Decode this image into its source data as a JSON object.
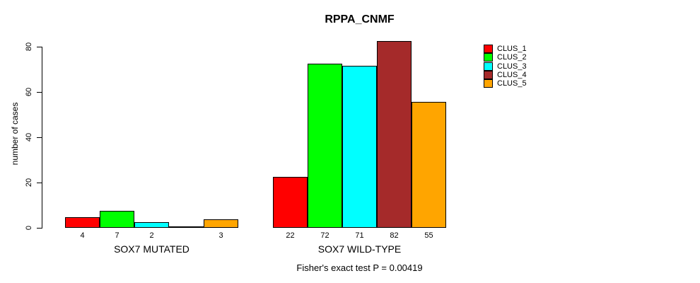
{
  "chart_data": {
    "type": "bar",
    "title": "RPPA_CNMF",
    "ylabel": "number of cases",
    "xlabel": "",
    "ylim": [
      0,
      80
    ],
    "yticks": [
      0,
      20,
      40,
      60,
      80
    ],
    "grid": false,
    "legend_position": "right-outside",
    "annotation": "Fisher's exact test P = 0.00419",
    "categories": [
      "SOX7 MUTATED",
      "SOX7 WILD-TYPE"
    ],
    "series": [
      {
        "name": "CLUS_1",
        "color": "#ff0000",
        "values": [
          4,
          22
        ]
      },
      {
        "name": "CLUS_2",
        "color": "#00ff00",
        "values": [
          7,
          72
        ]
      },
      {
        "name": "CLUS_3",
        "color": "#00ffff",
        "values": [
          2,
          71
        ]
      },
      {
        "name": "CLUS_4",
        "color": "#a52a2a",
        "values": [
          0,
          82
        ]
      },
      {
        "name": "CLUS_5",
        "color": "#ffa500",
        "values": [
          3,
          55
        ]
      }
    ],
    "groups": [
      {
        "label": "SOX7 MUTATED",
        "values": [
          4,
          7,
          2,
          0,
          3
        ],
        "value_labels": [
          "4",
          "7",
          "2",
          "",
          "3"
        ]
      },
      {
        "label": "SOX7 WILD-TYPE",
        "values": [
          22,
          72,
          71,
          82,
          55
        ],
        "value_labels": [
          "22",
          "72",
          "71",
          "82",
          "55"
        ]
      }
    ]
  }
}
